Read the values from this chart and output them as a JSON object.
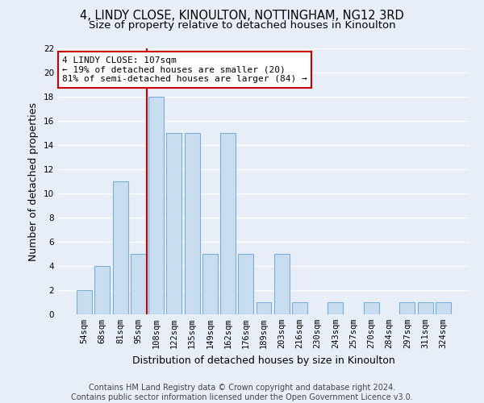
{
  "title": "4, LINDY CLOSE, KINOULTON, NOTTINGHAM, NG12 3RD",
  "subtitle": "Size of property relative to detached houses in Kinoulton",
  "xlabel": "Distribution of detached houses by size in Kinoulton",
  "ylabel": "Number of detached properties",
  "categories": [
    "54sqm",
    "68sqm",
    "81sqm",
    "95sqm",
    "108sqm",
    "122sqm",
    "135sqm",
    "149sqm",
    "162sqm",
    "176sqm",
    "189sqm",
    "203sqm",
    "216sqm",
    "230sqm",
    "243sqm",
    "257sqm",
    "270sqm",
    "284sqm",
    "297sqm",
    "311sqm",
    "324sqm"
  ],
  "values": [
    2,
    4,
    11,
    5,
    18,
    15,
    15,
    5,
    15,
    5,
    1,
    5,
    1,
    0,
    1,
    0,
    1,
    0,
    1,
    1,
    1
  ],
  "bar_color": "#c9ddf0",
  "bar_edge_color": "#7aafd4",
  "red_line_index": 4,
  "red_line_color": "#cc0000",
  "ylim": [
    0,
    22
  ],
  "yticks": [
    0,
    2,
    4,
    6,
    8,
    10,
    12,
    14,
    16,
    18,
    20,
    22
  ],
  "annotation_text": "4 LINDY CLOSE: 107sqm\n← 19% of detached houses are smaller (20)\n81% of semi-detached houses are larger (84) →",
  "annotation_box_color": "#ffffff",
  "annotation_box_edge_color": "#cc0000",
  "footer_line1": "Contains HM Land Registry data © Crown copyright and database right 2024.",
  "footer_line2": "Contains public sector information licensed under the Open Government Licence v3.0.",
  "background_color": "#e8eef8",
  "grid_color": "#ffffff",
  "title_fontsize": 10.5,
  "subtitle_fontsize": 9.5,
  "tick_fontsize": 7.5,
  "ylabel_fontsize": 9,
  "xlabel_fontsize": 9,
  "footer_fontsize": 7,
  "annotation_fontsize": 8
}
